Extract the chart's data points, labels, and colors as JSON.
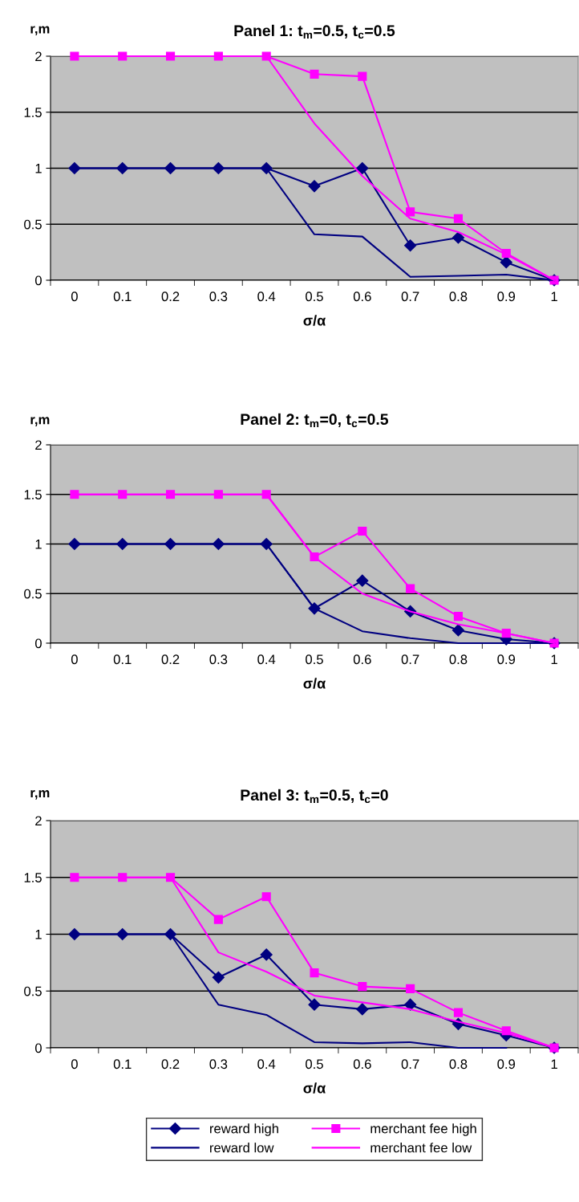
{
  "chart_data": [
    {
      "type": "line",
      "title": "Panel 1: t$_{m}$=0.5, t$_{c}$=0.5",
      "xlabel": "σ/α",
      "ylabel": "r,m",
      "categories": [
        "0",
        "0.1",
        "0.2",
        "0.3",
        "0.4",
        "0.5",
        "0.6",
        "0.7",
        "0.8",
        "0.9",
        "1"
      ],
      "ylim": [
        0,
        2
      ],
      "yticks": [
        0,
        0.5,
        1,
        1.5,
        2
      ],
      "grid": "y",
      "line_style": "solid",
      "series": [
        {
          "color": "#000080",
          "marker": "diamond",
          "values": [
            1,
            1,
            1,
            1,
            1,
            0.84,
            1,
            0.31,
            0.38,
            0.16,
            0
          ]
        },
        {
          "color": "#ff00ff",
          "marker": "square",
          "values": [
            2,
            2,
            2,
            2,
            2,
            1.84,
            1.82,
            0.61,
            0.55,
            0.24,
            0
          ]
        },
        {
          "color": "#000080",
          "marker": "none",
          "values": [
            1,
            1,
            1,
            1,
            1,
            0.41,
            0.39,
            0.03,
            0.04,
            0.05,
            0
          ]
        },
        {
          "color": "#ff00ff",
          "marker": "none",
          "values": [
            2,
            2,
            2,
            2,
            2,
            1.4,
            0.93,
            0.55,
            0.43,
            0.23,
            0
          ]
        }
      ]
    },
    {
      "type": "line",
      "title": "Panel 2: t$_{m}$=0, t$_{c}$=0.5",
      "xlabel": "σ/α",
      "ylabel": "r,m",
      "categories": [
        "0",
        "0.1",
        "0.2",
        "0.3",
        "0.4",
        "0.5",
        "0.6",
        "0.7",
        "0.8",
        "0.9",
        "1"
      ],
      "ylim": [
        0,
        2
      ],
      "yticks": [
        0,
        0.5,
        1,
        1.5,
        2
      ],
      "grid": "y",
      "line_style": "solid",
      "series": [
        {
          "color": "#000080",
          "marker": "diamond",
          "values": [
            1,
            1,
            1,
            1,
            1,
            0.35,
            0.63,
            0.32,
            0.13,
            0.04,
            0
          ]
        },
        {
          "color": "#ff00ff",
          "marker": "square",
          "values": [
            1.5,
            1.5,
            1.5,
            1.5,
            1.5,
            0.87,
            1.13,
            0.55,
            0.27,
            0.1,
            0
          ]
        },
        {
          "color": "#000080",
          "marker": "none",
          "values": [
            1,
            1,
            1,
            1,
            1,
            0.35,
            0.12,
            0.05,
            0,
            0,
            0
          ]
        },
        {
          "color": "#ff00ff",
          "marker": "none",
          "values": [
            1.5,
            1.5,
            1.5,
            1.5,
            1.5,
            0.87,
            0.5,
            0.32,
            0.19,
            0.1,
            0
          ]
        }
      ]
    },
    {
      "type": "line",
      "title": "Panel 3: t$_{m}$=0.5, t$_{c}$=0",
      "xlabel": "σ/α",
      "ylabel": "r,m",
      "categories": [
        "0",
        "0.1",
        "0.2",
        "0.3",
        "0.4",
        "0.5",
        "0.6",
        "0.7",
        "0.8",
        "0.9",
        "1"
      ],
      "ylim": [
        0,
        2
      ],
      "yticks": [
        0,
        0.5,
        1,
        1.5,
        2
      ],
      "grid": "y",
      "line_style": "solid",
      "legend": "bottom",
      "series": [
        {
          "name": "reward high",
          "color": "#000080",
          "marker": "diamond",
          "values": [
            1,
            1,
            1,
            0.62,
            0.82,
            0.38,
            0.34,
            0.38,
            0.21,
            0.11,
            0
          ]
        },
        {
          "name": "reward low",
          "color": "#000080",
          "marker": "none",
          "values": [
            1,
            1,
            1,
            0.38,
            0.29,
            0.05,
            0.04,
            0.05,
            0,
            0,
            null
          ]
        },
        {
          "name": "merchant fee high",
          "color": "#ff00ff",
          "marker": "square",
          "values": [
            1.5,
            1.5,
            1.5,
            1.13,
            1.33,
            0.66,
            0.54,
            0.52,
            0.31,
            0.15,
            0
          ]
        },
        {
          "name": "merchant fee low",
          "color": "#ff00ff",
          "marker": "none",
          "values": [
            1.5,
            1.5,
            1.5,
            0.84,
            0.67,
            0.46,
            0.4,
            0.34,
            0.23,
            0.13,
            0
          ]
        }
      ]
    }
  ]
}
